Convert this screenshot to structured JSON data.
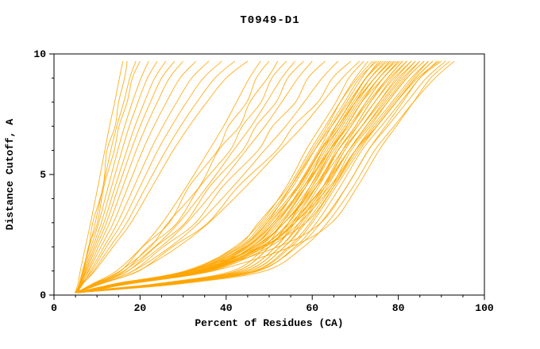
{
  "chart_data": {
    "type": "line",
    "title": "T0949-D1",
    "xlabel": "Percent of Residues (CA)",
    "ylabel": "Distance Cutoff, A",
    "xlim": [
      0,
      100
    ],
    "ylim": [
      0,
      10
    ],
    "x_ticks": [
      0,
      20,
      40,
      60,
      80,
      100
    ],
    "y_ticks": [
      0,
      5,
      10
    ],
    "x_minor_step": 5,
    "y_minor_step": 1,
    "curve_color": "#FFA500",
    "axis_color": "#000000",
    "background_color": "#ffffff",
    "legend": "none",
    "grid": false,
    "y_levels": [
      0.1,
      0.25,
      0.5,
      1,
      2,
      3,
      4.5,
      6,
      7,
      8,
      9,
      9.7
    ],
    "curves": [
      [
        5.0,
        5.2,
        5.6,
        6.1,
        7.3,
        8.5,
        10.2,
        11.8,
        12.9,
        14.1,
        15.2,
        16
      ],
      [
        5.3,
        5.5,
        5.9,
        6.6,
        8.1,
        9.0,
        11.4,
        12.3,
        14.2,
        15.0,
        16.4,
        17
      ],
      [
        4.9,
        5.4,
        6.0,
        6.8,
        8.2,
        9.6,
        11.4,
        13.2,
        14.6,
        16.2,
        17.6,
        19
      ],
      [
        5.5,
        5.7,
        6.1,
        6.9,
        8.0,
        10.1,
        11.6,
        14.0,
        15.1,
        17.0,
        18.2,
        20
      ],
      [
        5.1,
        5.5,
        6.1,
        7.0,
        8.6,
        10.4,
        12.6,
        14.8,
        16.4,
        18.2,
        20.2,
        22
      ],
      [
        5.6,
        5.8,
        6.3,
        7.2,
        9.0,
        11.0,
        13.4,
        15.8,
        17.5,
        19.5,
        21.7,
        24
      ],
      [
        4.8,
        5.6,
        6.3,
        7.4,
        9.4,
        11.6,
        14.2,
        16.9,
        18.8,
        21.0,
        23.4,
        26
      ],
      [
        5.4,
        5.6,
        6.2,
        7.6,
        9.8,
        12.2,
        15.0,
        17.9,
        20.0,
        22.4,
        25.0,
        28
      ],
      [
        5.2,
        5.7,
        6.5,
        7.9,
        10.3,
        12.9,
        16.0,
        19.1,
        21.4,
        24.0,
        26.8,
        30
      ],
      [
        5.7,
        5.9,
        6.4,
        8.1,
        10.9,
        13.8,
        17.2,
        20.6,
        23.2,
        26.1,
        29.3,
        33
      ],
      [
        5.0,
        5.8,
        6.7,
        8.5,
        11.6,
        14.8,
        18.6,
        22.4,
        25.3,
        28.5,
        32.0,
        36
      ],
      [
        5.3,
        5.6,
        6.6,
        8.8,
        12.2,
        15.8,
        20.0,
        24.1,
        27.3,
        30.8,
        34.7,
        39
      ],
      [
        4.9,
        5.9,
        6.9,
        9.2,
        13.0,
        16.9,
        21.4,
        26.0,
        29.4,
        33.2,
        37.4,
        42
      ],
      [
        5.5,
        5.7,
        6.8,
        9.5,
        13.7,
        17.9,
        22.8,
        27.7,
        31.4,
        35.5,
        40.0,
        45
      ],
      [
        5.1,
        6.7,
        9.3,
        14.5,
        20.5,
        25.2,
        30.8,
        36.0,
        39.4,
        42.4,
        45.4,
        48
      ],
      [
        5.6,
        6.8,
        9.5,
        15.5,
        20.6,
        26.8,
        31.4,
        38.0,
        40.5,
        44.8,
        47.0,
        50
      ],
      [
        4.8,
        6.9,
        9.7,
        15.3,
        22.4,
        26.5,
        33.8,
        38.2,
        43.1,
        45.5,
        49.6,
        52
      ],
      [
        5.4,
        7.0,
        9.9,
        16.4,
        22.0,
        28.6,
        33.9,
        40.9,
        43.7,
        48.1,
        50.6,
        54
      ],
      [
        5.2,
        7.0,
        10.1,
        16.2,
        23.4,
        29.0,
        35.6,
        41.7,
        45.8,
        49.4,
        52.9,
        56
      ],
      [
        5.7,
        7.1,
        10.3,
        17.2,
        23.6,
        30.5,
        36.2,
        43.8,
        46.9,
        51.6,
        54.3,
        58
      ],
      [
        5.0,
        7.2,
        10.5,
        17.1,
        24.8,
        30.9,
        38.0,
        44.6,
        49.0,
        52.9,
        56.7,
        60
      ],
      [
        5.3,
        7.3,
        10.8,
        18.3,
        25.4,
        32.9,
        39.2,
        47.4,
        50.8,
        56.1,
        59.0,
        63
      ],
      [
        4.9,
        7.4,
        11.1,
        18.4,
        27.0,
        33.7,
        41.6,
        48.9,
        53.8,
        58.1,
        62.3,
        66
      ],
      [
        5.5,
        7.6,
        11.4,
        19.7,
        27.5,
        35.8,
        42.8,
        51.7,
        55.6,
        61.3,
        64.7,
        69
      ],
      [
        5.1,
        7.6,
        11.6,
        19.5,
        28.8,
        36.0,
        44.6,
        52.5,
        57.8,
        62.4,
        67.0,
        71
      ],
      [
        5.6,
        9.5,
        15.5,
        31.5,
        42.0,
        48.0,
        54.0,
        58.5,
        62.0,
        65.5,
        68.5,
        72
      ],
      [
        4.8,
        10.0,
        16.5,
        33.0,
        44.0,
        49.5,
        55.0,
        60.0,
        63.5,
        66.5,
        70.0,
        73
      ],
      [
        5.4,
        9.0,
        15.0,
        30.5,
        42.5,
        47.5,
        54.5,
        59.5,
        63.0,
        66.5,
        70.5,
        74
      ],
      [
        5.2,
        10.5,
        17.0,
        34.0,
        45.0,
        51.0,
        56.5,
        61.5,
        64.5,
        68.0,
        71.5,
        74.5
      ],
      [
        5.7,
        9.8,
        16.0,
        32.0,
        43.5,
        49.0,
        55.5,
        60.5,
        64.0,
        67.5,
        71.0,
        75
      ],
      [
        5.0,
        11.0,
        18.0,
        35.0,
        46.0,
        52.0,
        57.5,
        62.5,
        65.5,
        69.0,
        72.5,
        75.5
      ],
      [
        5.3,
        10.0,
        16.4,
        33.4,
        44.8,
        50.4,
        56.8,
        61.8,
        65.4,
        68.9,
        72.4,
        76
      ],
      [
        4.9,
        9.3,
        15.2,
        31.0,
        43.0,
        48.5,
        55.0,
        60.5,
        64.5,
        68.5,
        72.5,
        76.5
      ],
      [
        5.5,
        10.8,
        17.5,
        34.5,
        46.0,
        51.5,
        58.0,
        63.0,
        66.5,
        70.0,
        73.5,
        77
      ],
      [
        5.1,
        9.6,
        15.8,
        32.5,
        44.5,
        50.0,
        57.0,
        62.0,
        66.0,
        69.5,
        73.5,
        77.5
      ],
      [
        5.6,
        10.2,
        16.8,
        34.0,
        46.5,
        52.5,
        58.5,
        63.5,
        67.0,
        70.5,
        74.5,
        78
      ],
      [
        4.8,
        9.2,
        15.0,
        31.5,
        43.5,
        49.5,
        56.5,
        62.0,
        66.0,
        70.0,
        74.5,
        78.5
      ],
      [
        5.4,
        10.5,
        17.2,
        35.0,
        47.5,
        53.0,
        59.5,
        64.5,
        68.0,
        71.5,
        75.5,
        79
      ],
      [
        5.2,
        9.9,
        16.2,
        33.0,
        45.5,
        51.5,
        58.5,
        64.0,
        68.0,
        71.5,
        75.5,
        79.5
      ],
      [
        5.7,
        10.3,
        17.0,
        34.5,
        47.0,
        53.5,
        60.0,
        65.0,
        69.0,
        72.5,
        76.5,
        80
      ],
      [
        5.0,
        9.4,
        15.4,
        32.0,
        44.5,
        51.0,
        58.0,
        64.0,
        68.5,
        72.5,
        76.5,
        80.5
      ],
      [
        5.3,
        10.7,
        17.6,
        35.5,
        48.0,
        54.5,
        61.0,
        66.0,
        70.0,
        73.5,
        77.5,
        81
      ],
      [
        4.9,
        10.0,
        16.6,
        34.0,
        46.5,
        53.5,
        60.5,
        66.0,
        70.5,
        74.5,
        78.5,
        82
      ],
      [
        5.5,
        10.9,
        18.0,
        36.0,
        49.0,
        55.5,
        62.5,
        67.5,
        71.5,
        75.5,
        79.5,
        83
      ],
      [
        5.1,
        9.7,
        16.0,
        33.5,
        46.5,
        53.5,
        61.0,
        67.0,
        71.5,
        76.0,
        80.5,
        84
      ],
      [
        5.6,
        10.4,
        17.3,
        35.5,
        49.0,
        56.0,
        63.0,
        68.5,
        72.5,
        77.0,
        81.5,
        85
      ],
      [
        4.8,
        9.9,
        16.4,
        34.5,
        48.0,
        55.0,
        62.5,
        68.5,
        73.0,
        77.5,
        82.0,
        86
      ],
      [
        5.4,
        10.6,
        17.8,
        36.5,
        50.0,
        57.0,
        64.5,
        70.0,
        74.5,
        79.0,
        83.5,
        87
      ],
      [
        5.2,
        10.1,
        16.9,
        35.0,
        48.5,
        56.0,
        64.0,
        70.0,
        75.0,
        79.5,
        84.0,
        88
      ],
      [
        5.7,
        12.0,
        25.0,
        41.5,
        49.0,
        53.0,
        58.5,
        62.5,
        66.5,
        70.0,
        74.5,
        78
      ],
      [
        5.0,
        13.0,
        26.5,
        42.5,
        50.0,
        54.5,
        59.5,
        64.0,
        67.5,
        71.0,
        75.5,
        79
      ],
      [
        5.3,
        12.5,
        26.0,
        42.5,
        50.0,
        54.5,
        60.0,
        64.5,
        68.0,
        71.5,
        76.5,
        80
      ],
      [
        4.9,
        13.5,
        27.5,
        43.5,
        51.5,
        55.5,
        61.0,
        65.5,
        69.0,
        73.0,
        77.5,
        81
      ],
      [
        5.5,
        12.8,
        26.5,
        43.5,
        51.5,
        56.0,
        61.5,
        66.0,
        70.0,
        73.5,
        78.0,
        82
      ],
      [
        5.1,
        14.0,
        28.0,
        44.5,
        52.5,
        57.0,
        62.5,
        67.0,
        70.5,
        74.5,
        79.0,
        83
      ],
      [
        5.6,
        13.0,
        27.0,
        44.5,
        52.5,
        57.5,
        63.0,
        67.5,
        71.5,
        75.5,
        80.0,
        84
      ],
      [
        4.8,
        14.5,
        29.0,
        45.5,
        53.5,
        58.0,
        63.5,
        68.5,
        72.5,
        76.5,
        81.0,
        85
      ],
      [
        5.4,
        13.3,
        27.5,
        45.5,
        53.5,
        58.5,
        64.5,
        69.0,
        73.5,
        77.5,
        82.0,
        86
      ],
      [
        5.2,
        15.0,
        29.5,
        46.5,
        54.5,
        59.5,
        65.0,
        70.0,
        74.0,
        78.5,
        83.0,
        87
      ],
      [
        5.7,
        13.7,
        28.0,
        46.5,
        55.0,
        60.0,
        65.5,
        71.0,
        75.0,
        79.5,
        84.0,
        88
      ],
      [
        5.0,
        15.5,
        30.0,
        47.5,
        56.0,
        61.0,
        66.5,
        71.5,
        76.0,
        80.5,
        85.0,
        89
      ],
      [
        5.3,
        14.0,
        28.5,
        47.0,
        56.5,
        62.0,
        68.0,
        73.0,
        77.5,
        82.0,
        86.5,
        91
      ],
      [
        4.9,
        16.0,
        31.0,
        49.0,
        58.0,
        63.5,
        69.5,
        74.5,
        79.0,
        83.5,
        88.5,
        93
      ],
      [
        5.8,
        9.0,
        17.0,
        34.0,
        52.0,
        62.0,
        68.0,
        73.0,
        77.0,
        81.0,
        85.0,
        90
      ],
      [
        6.0,
        10.0,
        19.0,
        37.0,
        55.0,
        64.5,
        70.5,
        75.5,
        79.5,
        83.5,
        87.5,
        92
      ],
      [
        5.6,
        8.5,
        15.5,
        31.0,
        48.0,
        58.5,
        65.0,
        70.5,
        75.0,
        79.5,
        84.5,
        89.5
      ]
    ]
  }
}
